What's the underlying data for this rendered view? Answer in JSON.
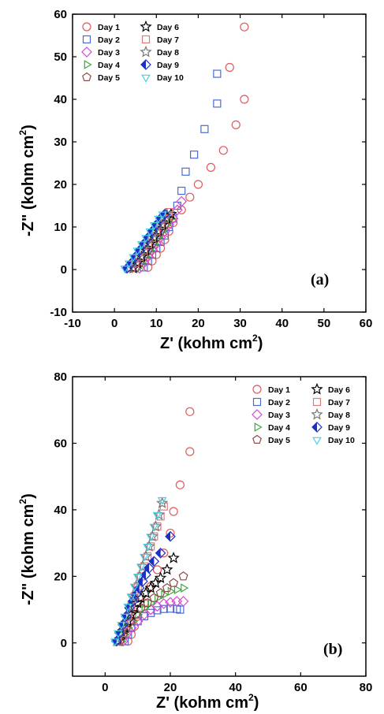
{
  "chart_data": [
    {
      "type": "scatter",
      "panel_label": "(a)",
      "xlabel": "Z' (kohm cm",
      "ylabel": "-Z\" (kohm cm",
      "label_exponent": "2",
      "xlim": [
        -10,
        60
      ],
      "ylim": [
        -10,
        60
      ],
      "xticks": [
        -10,
        0,
        10,
        20,
        30,
        40,
        50,
        60
      ],
      "yticks": [
        -10,
        0,
        10,
        20,
        30,
        40,
        50,
        60
      ],
      "legend_position": "top-left",
      "series": [
        {
          "name": "Day 1",
          "marker": "circle",
          "color": "#e05a5a",
          "x": [
            8,
            9,
            10,
            11,
            12,
            13,
            14,
            16,
            18,
            20,
            23,
            26,
            29,
            31
          ],
          "y": [
            0.5,
            2,
            3.5,
            5,
            7,
            9,
            11,
            14,
            17,
            20,
            24,
            28,
            34,
            40
          ],
          "extra": {
            "x": [
              27.5,
              31
            ],
            "y": [
              47.5,
              57
            ]
          }
        },
        {
          "name": "Day 2",
          "marker": "square",
          "color": "#4a6bd6",
          "x": [
            7,
            8,
            9,
            10,
            11,
            12,
            13,
            14,
            15,
            16,
            17,
            19,
            21.5,
            24.5
          ],
          "y": [
            0.5,
            2,
            3.5,
            5,
            6.5,
            8,
            10,
            12,
            15,
            18.5,
            23,
            27,
            33,
            39
          ],
          "extra": {
            "x": [
              24.5
            ],
            "y": [
              46
            ]
          }
        },
        {
          "name": "Day 3",
          "marker": "diamond",
          "color": "#d24bd2",
          "x": [
            6,
            7,
            8,
            9,
            10,
            11,
            12,
            13,
            14,
            15,
            16
          ],
          "y": [
            0.3,
            1.5,
            3,
            4.5,
            6,
            7.5,
            9,
            10.5,
            12,
            14,
            16
          ]
        },
        {
          "name": "Day 4",
          "marker": "triangle-right",
          "color": "#3caa3c",
          "x": [
            5.5,
            6.5,
            7.5,
            8.5,
            9.5,
            10.5,
            11.5,
            12.5,
            13.5
          ],
          "y": [
            0.3,
            1.5,
            3,
            4.5,
            6,
            7.5,
            9,
            10.5,
            12
          ]
        },
        {
          "name": "Day 5",
          "marker": "pentagon",
          "color": "#8c4a4a",
          "x": [
            5,
            6,
            7,
            8,
            9,
            10,
            11,
            12,
            13
          ],
          "y": [
            0.3,
            1.5,
            3,
            4.5,
            6,
            7.5,
            9,
            10.5,
            12
          ]
        },
        {
          "name": "Day 6",
          "marker": "star",
          "color": "#000000",
          "x": [
            4.5,
            5.5,
            6.5,
            7.5,
            8.5,
            9.5,
            10.5,
            11.5,
            12.5,
            13.5
          ],
          "y": [
            0.3,
            1.5,
            3,
            4.5,
            6,
            7.5,
            9,
            10.5,
            12,
            13
          ]
        },
        {
          "name": "Day 7",
          "marker": "square",
          "color": "#e07a7a",
          "x": [
            4,
            5,
            6,
            7,
            8,
            9,
            10,
            11,
            12,
            13
          ],
          "y": [
            0.3,
            1.5,
            3,
            4.5,
            6,
            7.5,
            9,
            10.5,
            12,
            13.5
          ]
        },
        {
          "name": "Day 8",
          "marker": "star",
          "color": "#777777",
          "x": [
            3.5,
            4.5,
            5.5,
            6.5,
            7.5,
            8.5,
            9.5,
            10.5,
            11.5,
            12.5
          ],
          "y": [
            0.3,
            1.5,
            3,
            4.5,
            6,
            7.5,
            9,
            10.5,
            12,
            13
          ]
        },
        {
          "name": "Day 9",
          "marker": "diamond-half",
          "color": "#1c2fc4",
          "x": [
            3,
            4,
            5,
            6,
            7,
            8,
            9,
            10,
            11,
            12
          ],
          "y": [
            0.3,
            1.5,
            3,
            4.5,
            6,
            7.5,
            9,
            10.5,
            12,
            13
          ]
        },
        {
          "name": "Day 10",
          "marker": "triangle-down",
          "color": "#45d0e6",
          "x": [
            2.5,
            3.5,
            4.5,
            5.5,
            6.5,
            7.5,
            8.5,
            9.5,
            10.5,
            11.5
          ],
          "y": [
            0.3,
            1.5,
            3,
            4.5,
            6,
            7.5,
            9,
            10.5,
            12,
            13
          ]
        }
      ]
    },
    {
      "type": "scatter",
      "panel_label": "(b)",
      "xlabel": "Z' (kohm cm",
      "ylabel": "-Z\" (kohm cm",
      "label_exponent": "2",
      "xlim": [
        -10,
        80
      ],
      "ylim": [
        -10,
        80
      ],
      "xticks": [
        0,
        20,
        40,
        60,
        80
      ],
      "yticks": [
        0,
        20,
        40,
        60,
        80
      ],
      "legend_position": "top-right",
      "series": [
        {
          "name": "Day 1",
          "marker": "circle",
          "color": "#e05a5a",
          "x": [
            7,
            8,
            9,
            10,
            12,
            14,
            16,
            18,
            20,
            21,
            23,
            26
          ],
          "y": [
            0.5,
            2.5,
            5,
            8,
            12,
            17,
            22,
            27,
            33,
            39.5,
            47.5,
            57.5
          ],
          "extra": {
            "x": [
              26
            ],
            "y": [
              69.5
            ]
          }
        },
        {
          "name": "Day 2",
          "marker": "square",
          "color": "#4a6bd6",
          "x": [
            6,
            7,
            8,
            10,
            12,
            14,
            16,
            18,
            20,
            22,
            23
          ],
          "y": [
            0.5,
            2.5,
            4.5,
            6.5,
            8,
            9,
            9.8,
            10.2,
            10.3,
            10.2,
            10
          ]
        },
        {
          "name": "Day 3",
          "marker": "diamond",
          "color": "#d24bd2",
          "x": [
            5.5,
            6.5,
            8,
            10,
            12,
            14,
            16,
            18,
            20,
            22,
            24
          ],
          "y": [
            0.5,
            2.5,
            4.5,
            6.5,
            8.5,
            10,
            11,
            11.8,
            12.2,
            12.5,
            12.5
          ]
        },
        {
          "name": "Day 4",
          "marker": "triangle-right",
          "color": "#3caa3c",
          "x": [
            5,
            6,
            7,
            8.5,
            10,
            12,
            14,
            16,
            18,
            20,
            22,
            24
          ],
          "y": [
            0.5,
            2.5,
            4.5,
            6.5,
            8.5,
            10.5,
            12,
            13.5,
            14.5,
            15.5,
            16,
            16.5
          ]
        },
        {
          "name": "Day 5",
          "marker": "pentagon",
          "color": "#8c4a4a",
          "x": [
            4.5,
            5.5,
            6.5,
            8,
            9.5,
            11,
            13,
            15,
            17,
            19,
            21,
            24
          ],
          "y": [
            0.5,
            2.5,
            4.5,
            6.5,
            8.5,
            10.5,
            12,
            13.5,
            15,
            16.5,
            18,
            20
          ]
        },
        {
          "name": "Day 6",
          "marker": "star",
          "color": "#000000",
          "x": [
            4,
            5,
            6,
            7,
            8,
            9,
            10,
            11,
            12.5,
            14,
            15.5,
            17,
            19,
            21
          ],
          "y": [
            0.5,
            2.5,
            4.5,
            6.5,
            8.5,
            10.5,
            12,
            13.5,
            15,
            16.5,
            18,
            19.5,
            22,
            25.5
          ]
        },
        {
          "name": "Day 7",
          "marker": "square",
          "color": "#e07a7a",
          "x": [
            4,
            5,
            6,
            7,
            8,
            9,
            10,
            11,
            12,
            13,
            14,
            15,
            16,
            17,
            18
          ],
          "y": [
            0.5,
            3,
            5.5,
            8,
            11,
            14,
            17,
            20,
            23,
            26,
            29,
            32,
            35,
            38,
            41
          ]
        },
        {
          "name": "Day 8",
          "marker": "star",
          "color": "#777777",
          "x": [
            3.5,
            4.5,
            5.5,
            6.5,
            7.5,
            8.5,
            9.5,
            10.5,
            11.5,
            12.5,
            13.5,
            14.5,
            15.5,
            16.5,
            17.5
          ],
          "y": [
            0.5,
            3,
            5.5,
            8,
            11,
            14,
            17,
            20,
            23,
            26,
            29,
            32,
            35,
            38.5,
            42
          ]
        },
        {
          "name": "Day 9",
          "marker": "diamond-half",
          "color": "#1c2fc4",
          "x": [
            3.5,
            4.5,
            5.5,
            6.5,
            7.5,
            8.5,
            9.5,
            10.5,
            11.5,
            12.5,
            13.5,
            15,
            17,
            20
          ],
          "y": [
            0.5,
            3,
            5.5,
            8,
            10.5,
            12.5,
            14.5,
            16.5,
            18.5,
            20.5,
            22.5,
            24.5,
            27,
            32
          ]
        },
        {
          "name": "Day 10",
          "marker": "triangle-down",
          "color": "#45d0e6",
          "x": [
            3,
            4,
            5,
            6,
            7,
            8,
            9,
            10,
            11,
            12,
            13,
            14,
            15,
            16,
            17.5
          ],
          "y": [
            0.5,
            3,
            5.5,
            8,
            11,
            14,
            17,
            20,
            23,
            26,
            29,
            32,
            35,
            38.5,
            43
          ]
        }
      ]
    }
  ]
}
